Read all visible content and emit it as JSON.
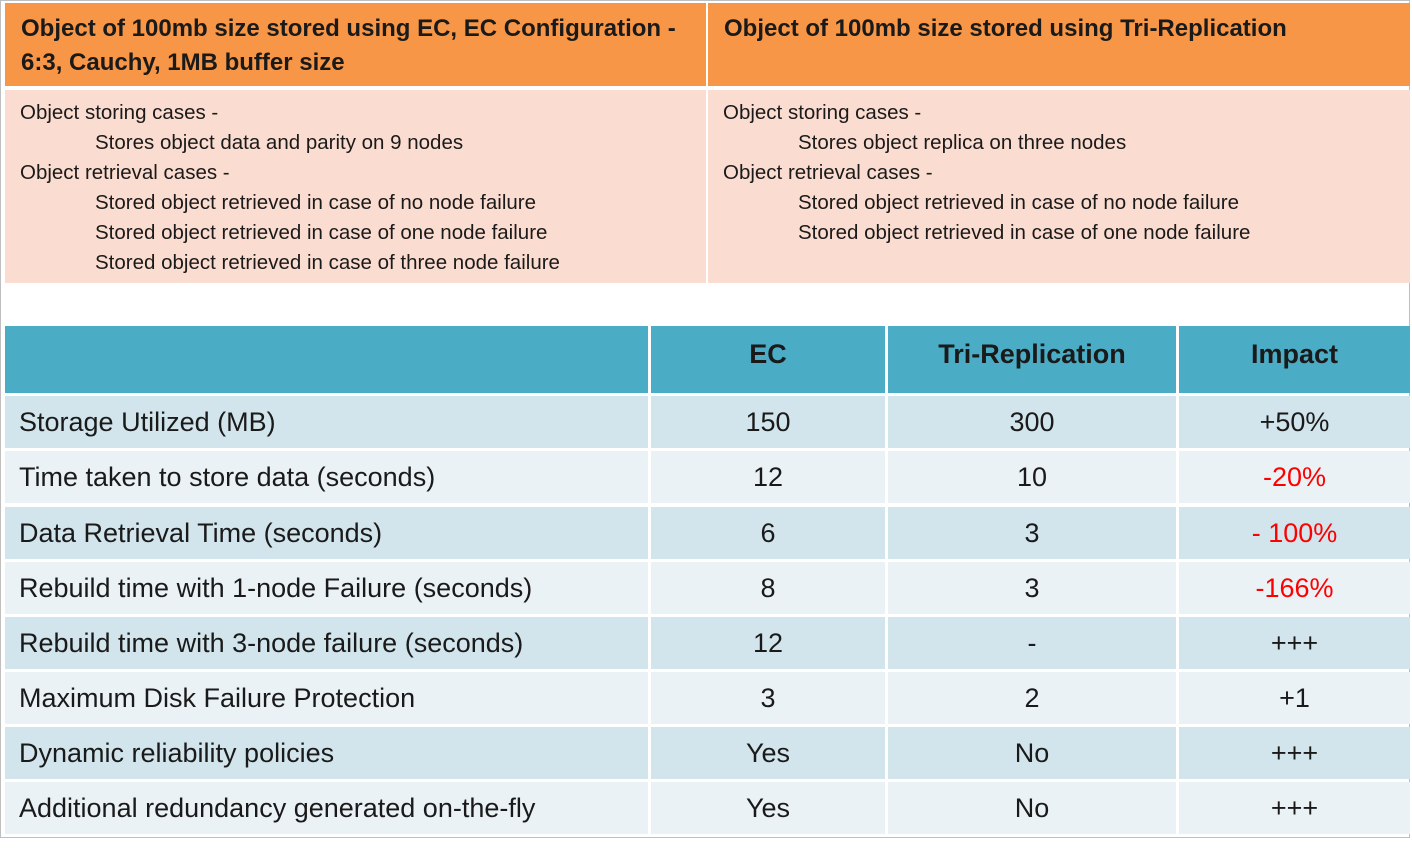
{
  "top": {
    "ec": {
      "heading": "Object of 100mb size stored using EC, EC Configuration - 6:3, Cauchy, 1MB buffer size",
      "lines": [
        {
          "text": "Object storing cases -",
          "indent": false
        },
        {
          "text": "Stores object data and parity on 9 nodes",
          "indent": true
        },
        {
          "text": "Object retrieval cases -",
          "indent": false
        },
        {
          "text": "Stored object retrieved in case of no node failure",
          "indent": true
        },
        {
          "text": "Stored object retrieved in case of one node failure",
          "indent": true
        },
        {
          "text": "Stored object retrieved in case of three node failure",
          "indent": true
        }
      ]
    },
    "tri": {
      "heading": "Object of 100mb size stored using Tri-Replication",
      "lines": [
        {
          "text": "Object storing cases -",
          "indent": false
        },
        {
          "text": "Stores object replica on three nodes",
          "indent": true
        },
        {
          "text": "Object retrieval cases -",
          "indent": false
        },
        {
          "text": "Stored object retrieved in case of no node failure",
          "indent": true
        },
        {
          "text": "Stored object retrieved in case of one node failure",
          "indent": true
        }
      ]
    }
  },
  "metrics": {
    "columns": [
      "",
      "EC",
      "Tri-Replication",
      "Impact"
    ],
    "rows": [
      {
        "label": "Storage Utilized (MB)",
        "ec": "150",
        "tri": "300",
        "impact": "+50%",
        "negative": false
      },
      {
        "label": "Time taken to store data (seconds)",
        "ec": "12",
        "tri": "10",
        "impact": "-20%",
        "negative": true
      },
      {
        "label": "Data Retrieval Time (seconds)",
        "ec": "6",
        "tri": "3",
        "impact": "- 100%",
        "negative": true
      },
      {
        "label": "Rebuild time with 1-node Failure (seconds)",
        "ec": "8",
        "tri": "3",
        "impact": "-166%",
        "negative": true
      },
      {
        "label": "Rebuild time with 3-node failure (seconds)",
        "ec": "12",
        "tri": "-",
        "impact": "+++",
        "negative": false
      },
      {
        "label": "Maximum Disk Failure Protection",
        "ec": "3",
        "tri": "2",
        "impact": "+1",
        "negative": false
      },
      {
        "label": "Dynamic reliability policies",
        "ec": "Yes",
        "tri": "No",
        "impact": "+++",
        "negative": false
      },
      {
        "label": "Additional redundancy generated on-the-fly",
        "ec": "Yes",
        "tri": "No",
        "impact": "+++",
        "negative": false
      }
    ],
    "colors": {
      "header": "#4bacc6",
      "row_odd": "#d2e5ec",
      "row_even": "#eaf2f6",
      "negative": "#ff0000"
    }
  },
  "colors": {
    "top_header": "#f79646",
    "top_body": "#fbdcd0"
  }
}
